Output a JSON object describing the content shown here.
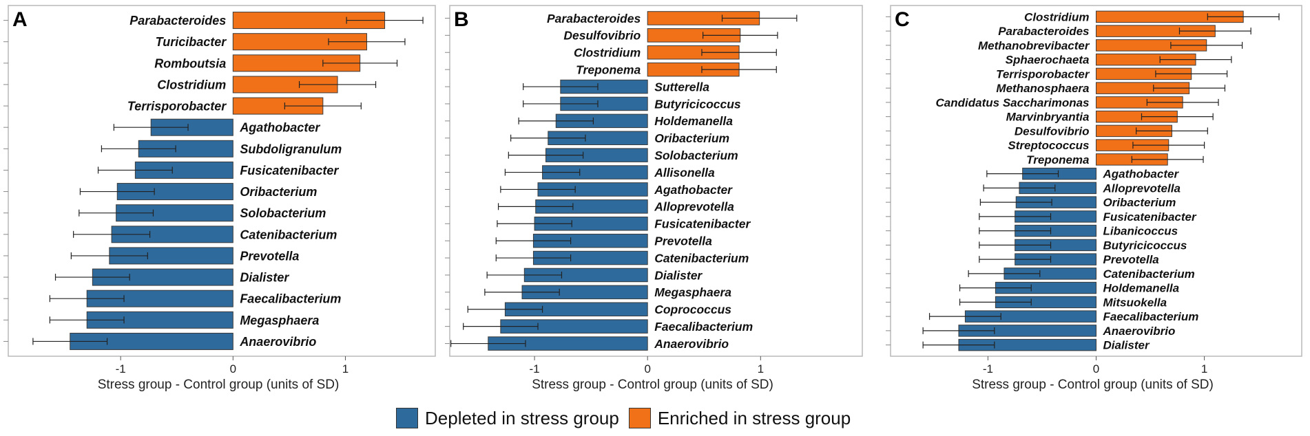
{
  "colors": {
    "depleted": "#2e6a9b",
    "enriched": "#f07118",
    "bar_stroke": "#3a3a3a",
    "panel_border": "#b8b8b8",
    "error_bar": "#222222"
  },
  "legend": {
    "depleted_label": "Depleted in stress group",
    "enriched_label": "Enriched in stress group"
  },
  "chart_data": [
    {
      "type": "bar",
      "orientation": "horizontal",
      "panel_label": "A",
      "xlabel": "Stress group - Control group (units of SD)",
      "xlim": [
        -2.0,
        1.8
      ],
      "xticks": [
        -1,
        0,
        1
      ],
      "bars": [
        {
          "label": "Parabacteroides",
          "value": 1.35,
          "error": 0.34
        },
        {
          "label": "Turicibacter",
          "value": 1.19,
          "error": 0.34
        },
        {
          "label": "Romboutsia",
          "value": 1.13,
          "error": 0.33
        },
        {
          "label": "Clostridium",
          "value": 0.93,
          "error": 0.34
        },
        {
          "label": "Terrisporobacter",
          "value": 0.8,
          "error": 0.34
        },
        {
          "label": "Agathobacter",
          "value": -0.73,
          "error": 0.33
        },
        {
          "label": "Subdoligranulum",
          "value": -0.84,
          "error": 0.33
        },
        {
          "label": "Fusicatenibacter",
          "value": -0.87,
          "error": 0.33
        },
        {
          "label": "Oribacterium",
          "value": -1.03,
          "error": 0.33
        },
        {
          "label": "Solobacterium",
          "value": -1.04,
          "error": 0.33
        },
        {
          "label": "Catenibacterium",
          "value": -1.08,
          "error": 0.34
        },
        {
          "label": "Prevotella",
          "value": -1.1,
          "error": 0.34
        },
        {
          "label": "Dialister",
          "value": -1.25,
          "error": 0.33
        },
        {
          "label": "Faecalibacterium",
          "value": -1.3,
          "error": 0.33
        },
        {
          "label": "Megasphaera",
          "value": -1.3,
          "error": 0.33
        },
        {
          "label": "Anaerovibrio",
          "value": -1.45,
          "error": 0.33
        }
      ]
    },
    {
      "type": "bar",
      "orientation": "horizontal",
      "panel_label": "B",
      "xlabel": "Stress group - Control group (units of SD)",
      "xlim": [
        -1.75,
        1.9
      ],
      "xticks": [
        -1,
        0,
        1
      ],
      "bars": [
        {
          "label": "Parabacteroides",
          "value": 0.99,
          "error": 0.33
        },
        {
          "label": "Desulfovibrio",
          "value": 0.82,
          "error": 0.33
        },
        {
          "label": "Clostridium",
          "value": 0.81,
          "error": 0.33
        },
        {
          "label": "Treponema",
          "value": 0.81,
          "error": 0.33
        },
        {
          "label": "Sutterella",
          "value": -0.77,
          "error": 0.33
        },
        {
          "label": "Butyricicoccus",
          "value": -0.77,
          "error": 0.33
        },
        {
          "label": "Holdemanella",
          "value": -0.81,
          "error": 0.33
        },
        {
          "label": "Oribacterium",
          "value": -0.88,
          "error": 0.33
        },
        {
          "label": "Solobacterium",
          "value": -0.9,
          "error": 0.33
        },
        {
          "label": "Allisonella",
          "value": -0.93,
          "error": 0.33
        },
        {
          "label": "Agathobacter",
          "value": -0.97,
          "error": 0.33
        },
        {
          "label": "Alloprevotella",
          "value": -0.99,
          "error": 0.33
        },
        {
          "label": "Fusicatenibacter",
          "value": -1.0,
          "error": 0.33
        },
        {
          "label": "Prevotella",
          "value": -1.01,
          "error": 0.33
        },
        {
          "label": "Catenibacterium",
          "value": -1.01,
          "error": 0.33
        },
        {
          "label": "Dialister",
          "value": -1.09,
          "error": 0.33
        },
        {
          "label": "Megasphaera",
          "value": -1.11,
          "error": 0.33
        },
        {
          "label": "Coprococcus",
          "value": -1.26,
          "error": 0.33
        },
        {
          "label": "Faecalibacterium",
          "value": -1.3,
          "error": 0.33
        },
        {
          "label": "Anaerovibrio",
          "value": -1.41,
          "error": 0.33
        }
      ]
    },
    {
      "type": "bar",
      "orientation": "horizontal",
      "panel_label": "C",
      "xlabel": "Stress group - Control group (units of SD)",
      "xlim": [
        -1.9,
        1.9
      ],
      "xticks": [
        -1,
        0,
        1
      ],
      "bars": [
        {
          "label": "Clostridium",
          "value": 1.36,
          "error": 0.33
        },
        {
          "label": "Parabacteroides",
          "value": 1.1,
          "error": 0.33
        },
        {
          "label": "Methanobrevibacter",
          "value": 1.02,
          "error": 0.33
        },
        {
          "label": "Sphaerochaeta",
          "value": 0.92,
          "error": 0.33
        },
        {
          "label": "Terrisporobacter",
          "value": 0.88,
          "error": 0.33
        },
        {
          "label": "Methanosphaera",
          "value": 0.86,
          "error": 0.33
        },
        {
          "label": "Candidatus Saccharimonas",
          "value": 0.8,
          "error": 0.33
        },
        {
          "label": "Marvinbryantia",
          "value": 0.75,
          "error": 0.33
        },
        {
          "label": "Desulfovibrio",
          "value": 0.7,
          "error": 0.33
        },
        {
          "label": "Streptococcus",
          "value": 0.67,
          "error": 0.33
        },
        {
          "label": "Treponema",
          "value": 0.66,
          "error": 0.33
        },
        {
          "label": "Agathobacter",
          "value": -0.68,
          "error": 0.33
        },
        {
          "label": "Alloprevotella",
          "value": -0.71,
          "error": 0.33
        },
        {
          "label": "Oribacterium",
          "value": -0.74,
          "error": 0.33
        },
        {
          "label": "Fusicatenibacter",
          "value": -0.75,
          "error": 0.33
        },
        {
          "label": "Libanicoccus",
          "value": -0.75,
          "error": 0.33
        },
        {
          "label": "Butyricicoccus",
          "value": -0.75,
          "error": 0.33
        },
        {
          "label": "Prevotella",
          "value": -0.75,
          "error": 0.33
        },
        {
          "label": "Catenibacterium",
          "value": -0.85,
          "error": 0.33
        },
        {
          "label": "Holdemanella",
          "value": -0.93,
          "error": 0.33
        },
        {
          "label": "Mitsuokella",
          "value": -0.93,
          "error": 0.33
        },
        {
          "label": "Faecalibacterium",
          "value": -1.21,
          "error": 0.33
        },
        {
          "label": "Anaerovibrio",
          "value": -1.27,
          "error": 0.33
        },
        {
          "label": "Dialister",
          "value": -1.27,
          "error": 0.33
        }
      ]
    }
  ]
}
